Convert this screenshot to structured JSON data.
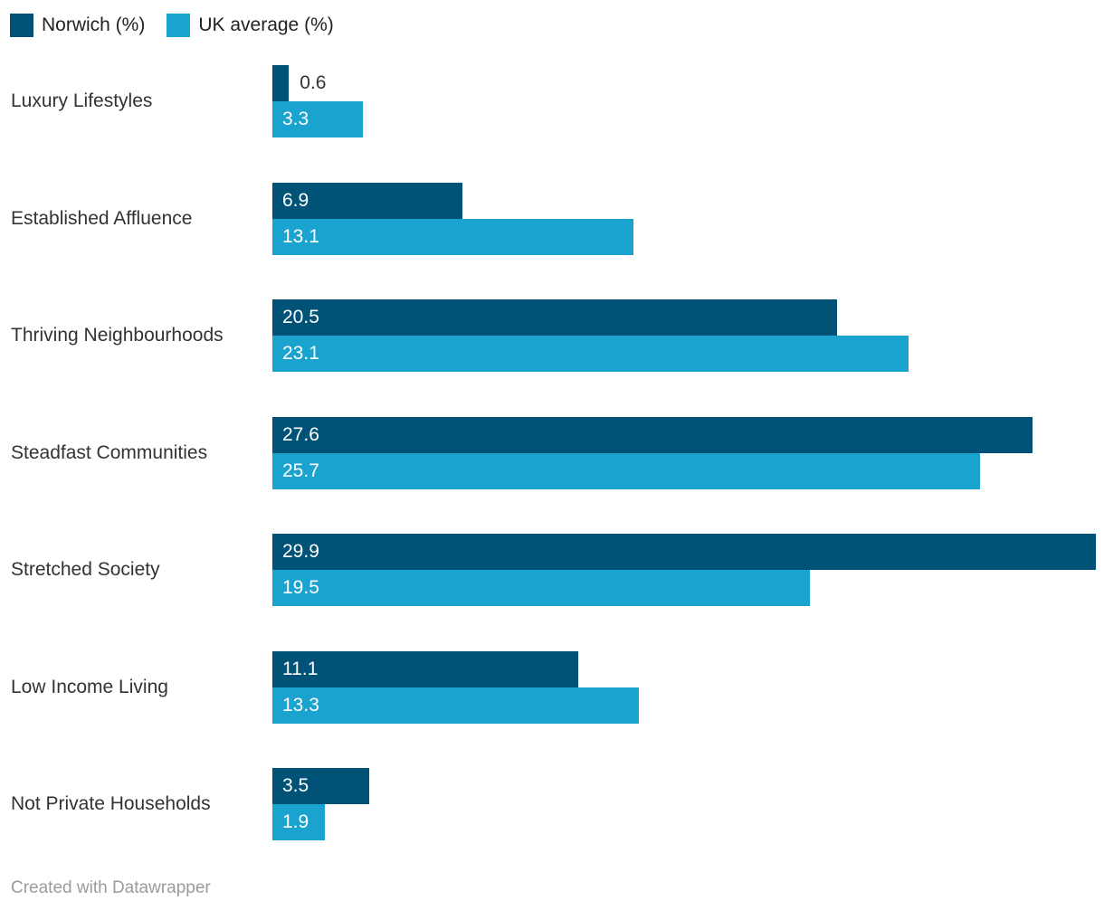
{
  "legend": {
    "items": [
      {
        "name": "norwich",
        "label": "Norwich (%)",
        "color": "#005277"
      },
      {
        "name": "uk-average",
        "label": "UK average (%)",
        "color": "#1aa3cf"
      }
    ]
  },
  "chart_data": {
    "type": "bar",
    "orientation": "horizontal",
    "grouped": true,
    "categories": [
      "Luxury Lifestyles",
      "Established Affluence",
      "Thriving Neighbourhoods",
      "Steadfast Communities",
      "Stretched Society",
      "Low Income Living",
      "Not Private Households"
    ],
    "series": [
      {
        "name": "Norwich (%)",
        "color": "#005277",
        "values": [
          0.6,
          6.9,
          20.5,
          27.6,
          29.9,
          11.1,
          3.5
        ]
      },
      {
        "name": "UK average (%)",
        "color": "#1aa3cf",
        "values": [
          3.3,
          13.1,
          23.1,
          25.7,
          19.5,
          13.3,
          1.9
        ]
      }
    ],
    "value_labels_shown": true,
    "xlim": [
      0,
      29.9
    ],
    "axis_shown": false,
    "legend_position": "top-left"
  },
  "footer": {
    "credit": "Created with Datawrapper"
  }
}
